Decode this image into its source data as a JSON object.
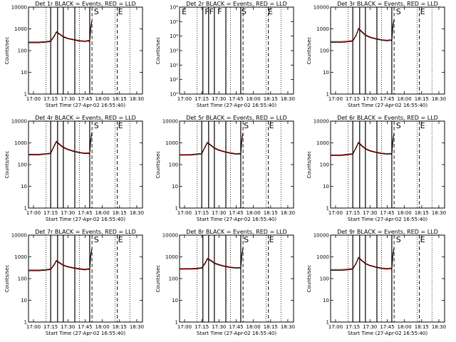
{
  "figure": {
    "background": "#ffffff",
    "axis_color": "#000000"
  },
  "colors": {
    "events": "#000000",
    "lld": "#cc0000"
  },
  "x_tick_labels": [
    "17:00",
    "17:15",
    "17:30",
    "17:45",
    "18:00",
    "18:15",
    "18:30"
  ],
  "xlabel": "Start Time (27-Apr-02 16:55:40)",
  "ylabel": "Counts/sec",
  "chart_data": [
    {
      "type": "line",
      "title": "Det 1r BLACK = Events, RED = LLD",
      "xlim": [
        "16:55:40",
        "18:35:00"
      ],
      "ylim": [
        1,
        10000
      ],
      "yscale": "log",
      "ytick_labels": [
        "1",
        "10",
        "100",
        "1000",
        "10000"
      ],
      "solid_lines": [
        "17:15",
        "17:21",
        "17:26",
        "17:36",
        "17:49"
      ],
      "dotted_lines": [
        "17:11",
        "17:40",
        "18:11",
        "18:24"
      ],
      "dashed_lines": [
        "17:51",
        "18:13"
      ],
      "flags": [
        {
          "text": "S",
          "x": "17:52"
        },
        {
          "text": "E",
          "x": "18:13"
        }
      ],
      "series": [
        {
          "name": "Events",
          "x": [
            "16:55:40",
            "17:05",
            "17:10",
            "17:15",
            "17:18",
            "17:20",
            "17:23",
            "17:26",
            "17:30",
            "17:35",
            "17:40",
            "17:45",
            "17:48",
            "17:49",
            "17:50",
            "17:51"
          ],
          "values": [
            230,
            230,
            240,
            260,
            450,
            700,
            550,
            420,
            350,
            310,
            270,
            260,
            280,
            250,
            1200,
            2400
          ]
        },
        {
          "name": "LLD",
          "x": [
            "16:55:40",
            "17:05",
            "17:10",
            "17:15",
            "17:18",
            "17:20",
            "17:23",
            "17:26",
            "17:30",
            "17:35",
            "17:40",
            "17:45",
            "17:48",
            "17:49",
            "17:50",
            "17:51"
          ],
          "values": [
            250,
            250,
            260,
            280,
            480,
            750,
            580,
            450,
            370,
            330,
            290,
            275,
            300,
            270,
            1300,
            2600
          ]
        }
      ]
    },
    {
      "type": "line",
      "title": "Det 2r BLACK = Events, RED = LLD",
      "xlim": [
        "16:55:40",
        "18:35:00"
      ],
      "ylim": [
        1,
        1000000
      ],
      "yscale": "log",
      "ytick_labels": [
        "10⁰",
        "10¹",
        "10²",
        "10³",
        "10⁴",
        "10⁵",
        "10⁶"
      ],
      "solid_lines": [
        "17:16",
        "17:21",
        "17:26",
        "17:36",
        "17:49"
      ],
      "dotted_lines": [
        "17:11",
        "17:40",
        "18:11",
        "18:24"
      ],
      "dashed_lines": [
        "17:51",
        "18:13"
      ],
      "flags": [
        {
          "text": "E",
          "x": "16:57"
        },
        {
          "text": "FF",
          "x": "17:17"
        },
        {
          "text": "F",
          "x": "17:28"
        },
        {
          "text": "S",
          "x": "17:49"
        },
        {
          "text": "E",
          "x": "18:12"
        }
      ],
      "series": []
    },
    {
      "type": "line",
      "title": "Det 3r BLACK = Events, RED = LLD",
      "xlim": [
        "16:55:40",
        "18:35:00"
      ],
      "ylim": [
        1,
        10000
      ],
      "yscale": "log",
      "ytick_labels": [
        "1",
        "10",
        "100",
        "1000",
        "10000"
      ],
      "solid_lines": [
        "17:15",
        "17:21",
        "17:26",
        "17:36",
        "17:49"
      ],
      "dotted_lines": [
        "17:11",
        "17:40",
        "18:11",
        "18:24"
      ],
      "dashed_lines": [
        "17:51",
        "18:13"
      ],
      "flags": [
        {
          "text": "S",
          "x": "17:52"
        },
        {
          "text": "E",
          "x": "18:13"
        }
      ],
      "series": [
        {
          "name": "Events",
          "x": [
            "16:55:40",
            "17:05",
            "17:10",
            "17:15",
            "17:18",
            "17:20",
            "17:23",
            "17:26",
            "17:30",
            "17:35",
            "17:40",
            "17:45",
            "17:48",
            "17:49",
            "17:50",
            "17:51"
          ],
          "values": [
            240,
            240,
            250,
            270,
            500,
            1000,
            700,
            500,
            400,
            340,
            300,
            280,
            300,
            270,
            1400,
            2600
          ]
        },
        {
          "name": "LLD",
          "x": [
            "16:55:40",
            "17:05",
            "17:10",
            "17:15",
            "17:18",
            "17:20",
            "17:23",
            "17:26",
            "17:30",
            "17:35",
            "17:40",
            "17:45",
            "17:48",
            "17:49",
            "17:50",
            "17:51"
          ],
          "values": [
            260,
            260,
            270,
            290,
            540,
            1080,
            760,
            540,
            430,
            360,
            320,
            300,
            320,
            290,
            1500,
            2800
          ]
        }
      ]
    },
    {
      "type": "line",
      "title": "Det 4r BLACK = Events, RED = LLD",
      "xlim": [
        "16:55:40",
        "18:35:00"
      ],
      "ylim": [
        1,
        10000
      ],
      "yscale": "log",
      "ytick_labels": [
        "1",
        "10",
        "100",
        "1000",
        "10000"
      ],
      "solid_lines": [
        "17:15",
        "17:21",
        "17:26",
        "17:36",
        "17:49"
      ],
      "dotted_lines": [
        "17:11",
        "17:40",
        "18:11",
        "18:24"
      ],
      "dashed_lines": [
        "17:51",
        "18:13"
      ],
      "flags": [
        {
          "text": "S",
          "x": "17:52"
        },
        {
          "text": "E",
          "x": "18:13"
        }
      ],
      "series": [
        {
          "name": "Events",
          "x": [
            "16:55:40",
            "17:05",
            "17:10",
            "17:15",
            "17:18",
            "17:20",
            "17:23",
            "17:26",
            "17:30",
            "17:35",
            "17:40",
            "17:45",
            "17:48",
            "17:49",
            "17:50",
            "17:51"
          ],
          "values": [
            280,
            280,
            300,
            320,
            700,
            1100,
            800,
            600,
            480,
            400,
            350,
            320,
            330,
            300,
            1500,
            3000
          ]
        },
        {
          "name": "LLD",
          "x": [
            "16:55:40",
            "17:05",
            "17:10",
            "17:15",
            "17:18",
            "17:20",
            "17:23",
            "17:26",
            "17:30",
            "17:35",
            "17:40",
            "17:45",
            "17:48",
            "17:49",
            "17:50",
            "17:51"
          ],
          "values": [
            300,
            300,
            320,
            340,
            760,
            1200,
            860,
            650,
            520,
            430,
            370,
            340,
            350,
            320,
            1600,
            3200
          ]
        }
      ]
    },
    {
      "type": "line",
      "title": "Det 5r BLACK = Events, RED = LLD",
      "xlim": [
        "16:55:40",
        "18:35:00"
      ],
      "ylim": [
        1,
        10000
      ],
      "yscale": "log",
      "ytick_labels": [
        "1",
        "10",
        "100",
        "1000",
        "10000"
      ],
      "solid_lines": [
        "17:15",
        "17:21",
        "17:26",
        "17:36",
        "17:49"
      ],
      "dotted_lines": [
        "17:11",
        "17:40",
        "18:11",
        "18:24"
      ],
      "dashed_lines": [
        "17:51",
        "18:13"
      ],
      "flags": [
        {
          "text": "S",
          "x": "17:51"
        },
        {
          "text": "E",
          "x": "18:13"
        }
      ],
      "series": [
        {
          "name": "Events",
          "x": [
            "16:55:40",
            "17:05",
            "17:10",
            "17:15",
            "17:18",
            "17:20",
            "17:23",
            "17:26",
            "17:30",
            "17:35",
            "17:40",
            "17:45",
            "17:48",
            "17:49",
            "17:50",
            "17:51"
          ],
          "values": [
            270,
            270,
            290,
            310,
            650,
            1000,
            750,
            560,
            450,
            380,
            330,
            300,
            310,
            280,
            1400,
            2800
          ]
        },
        {
          "name": "LLD",
          "x": [
            "16:55:40",
            "17:05",
            "17:10",
            "17:15",
            "17:18",
            "17:20",
            "17:23",
            "17:26",
            "17:30",
            "17:35",
            "17:40",
            "17:45",
            "17:48",
            "17:49",
            "17:50",
            "17:51"
          ],
          "values": [
            290,
            290,
            310,
            330,
            700,
            1080,
            800,
            600,
            480,
            400,
            350,
            320,
            330,
            300,
            1500,
            3000
          ]
        }
      ]
    },
    {
      "type": "line",
      "title": "Det 6r BLACK = Events, RED = LLD",
      "xlim": [
        "16:55:40",
        "18:35:00"
      ],
      "ylim": [
        1,
        10000
      ],
      "yscale": "log",
      "ytick_labels": [
        "1",
        "10",
        "100",
        "1000",
        "10000"
      ],
      "solid_lines": [
        "17:15",
        "17:21",
        "17:26",
        "17:36",
        "17:49"
      ],
      "dotted_lines": [
        "17:11",
        "17:40",
        "18:11",
        "18:24"
      ],
      "dashed_lines": [
        "17:51",
        "18:13"
      ],
      "flags": [
        {
          "text": "S",
          "x": "17:52"
        },
        {
          "text": "E",
          "x": "18:13"
        }
      ],
      "series": [
        {
          "name": "Events",
          "x": [
            "16:55:40",
            "17:05",
            "17:10",
            "17:15",
            "17:18",
            "17:20",
            "17:23",
            "17:26",
            "17:30",
            "17:35",
            "17:40",
            "17:45",
            "17:48",
            "17:49",
            "17:50",
            "17:51"
          ],
          "values": [
            260,
            260,
            280,
            300,
            600,
            1000,
            700,
            520,
            420,
            360,
            320,
            300,
            310,
            280,
            1300,
            2700
          ]
        },
        {
          "name": "LLD",
          "x": [
            "16:55:40",
            "17:05",
            "17:10",
            "17:15",
            "17:18",
            "17:20",
            "17:23",
            "17:26",
            "17:30",
            "17:35",
            "17:40",
            "17:45",
            "17:48",
            "17:49",
            "17:50",
            "17:51"
          ],
          "values": [
            280,
            280,
            300,
            320,
            650,
            1080,
            760,
            560,
            450,
            380,
            340,
            320,
            330,
            300,
            1400,
            2900
          ]
        }
      ]
    },
    {
      "type": "line",
      "title": "Det 7r BLACK = Events, RED = LLD",
      "xlim": [
        "16:55:40",
        "18:35:00"
      ],
      "ylim": [
        1,
        10000
      ],
      "yscale": "log",
      "ytick_labels": [
        "1",
        "10",
        "100",
        "1000",
        "10000"
      ],
      "solid_lines": [
        "17:15",
        "17:21",
        "17:26",
        "17:36",
        "17:49"
      ],
      "dotted_lines": [
        "17:11",
        "17:40",
        "18:11",
        "18:24"
      ],
      "dashed_lines": [
        "17:51",
        "18:13"
      ],
      "flags": [
        {
          "text": "S",
          "x": "17:52"
        },
        {
          "text": "E",
          "x": "18:13"
        }
      ],
      "series": [
        {
          "name": "Events",
          "x": [
            "16:55:40",
            "17:05",
            "17:10",
            "17:15",
            "17:18",
            "17:20",
            "17:23",
            "17:26",
            "17:30",
            "17:35",
            "17:40",
            "17:45",
            "17:48",
            "17:49",
            "17:50",
            "17:51"
          ],
          "values": [
            230,
            230,
            240,
            260,
            420,
            650,
            500,
            400,
            340,
            300,
            270,
            250,
            270,
            250,
            1200,
            2400
          ]
        },
        {
          "name": "LLD",
          "x": [
            "16:55:40",
            "17:05",
            "17:10",
            "17:15",
            "17:18",
            "17:20",
            "17:23",
            "17:26",
            "17:30",
            "17:35",
            "17:40",
            "17:45",
            "17:48",
            "17:49",
            "17:50",
            "17:51"
          ],
          "values": [
            250,
            250,
            260,
            280,
            450,
            700,
            540,
            430,
            360,
            320,
            290,
            270,
            290,
            270,
            1300,
            2600
          ]
        }
      ]
    },
    {
      "type": "line",
      "title": "Det 8r BLACK = Events, RED = LLD",
      "xlim": [
        "16:55:40",
        "18:35:00"
      ],
      "ylim": [
        1,
        10000
      ],
      "yscale": "log",
      "ytick_labels": [
        "1",
        "10",
        "100",
        "1000",
        "10000"
      ],
      "solid_lines": [
        "17:16",
        "17:21",
        "17:26",
        "17:36",
        "17:49"
      ],
      "dotted_lines": [
        "17:11",
        "17:40",
        "18:11",
        "18:24"
      ],
      "dashed_lines": [
        "17:51",
        "18:13"
      ],
      "flags": [
        {
          "text": "S",
          "x": "17:51"
        },
        {
          "text": "E",
          "x": "18:13"
        }
      ],
      "series": [
        {
          "name": "Events",
          "x": [
            "16:55:40",
            "17:05",
            "17:10",
            "17:15",
            "17:18",
            "17:20",
            "17:23",
            "17:26",
            "17:30",
            "17:35",
            "17:40",
            "17:45",
            "17:48",
            "17:49",
            "17:50",
            "17:51"
          ],
          "values": [
            270,
            270,
            280,
            300,
            500,
            800,
            650,
            500,
            420,
            360,
            320,
            300,
            310,
            290,
            1300,
            2600
          ]
        },
        {
          "name": "LLD",
          "x": [
            "16:55:40",
            "17:05",
            "17:10",
            "17:15",
            "17:18",
            "17:20",
            "17:23",
            "17:26",
            "17:30",
            "17:35",
            "17:40",
            "17:45",
            "17:48",
            "17:49",
            "17:50",
            "17:51"
          ],
          "values": [
            290,
            290,
            300,
            320,
            540,
            860,
            700,
            540,
            450,
            380,
            340,
            320,
            330,
            310,
            1400,
            2800
          ]
        }
      ]
    },
    {
      "type": "line",
      "title": "Det 9r BLACK = Events, RED = LLD",
      "xlim": [
        "16:55:40",
        "18:35:00"
      ],
      "ylim": [
        1,
        10000
      ],
      "yscale": "log",
      "ytick_labels": [
        "1",
        "10",
        "100",
        "1000",
        "10000"
      ],
      "solid_lines": [
        "17:15",
        "17:21",
        "17:26",
        "17:36",
        "17:49"
      ],
      "dotted_lines": [
        "17:11",
        "17:40",
        "18:11",
        "18:24"
      ],
      "dashed_lines": [
        "17:51",
        "18:13"
      ],
      "flags": [
        {
          "text": "S",
          "x": "17:52"
        },
        {
          "text": "E",
          "x": "18:13"
        }
      ],
      "series": [
        {
          "name": "Events",
          "x": [
            "16:55:40",
            "17:05",
            "17:10",
            "17:15",
            "17:18",
            "17:20",
            "17:23",
            "17:26",
            "17:30",
            "17:35",
            "17:40",
            "17:45",
            "17:48",
            "17:49",
            "17:50",
            "17:51"
          ],
          "values": [
            240,
            240,
            250,
            270,
            500,
            900,
            650,
            480,
            390,
            330,
            290,
            270,
            290,
            260,
            1300,
            2500
          ]
        },
        {
          "name": "LLD",
          "x": [
            "16:55:40",
            "17:05",
            "17:10",
            "17:15",
            "17:18",
            "17:20",
            "17:23",
            "17:26",
            "17:30",
            "17:35",
            "17:40",
            "17:45",
            "17:48",
            "17:49",
            "17:50",
            "17:51"
          ],
          "values": [
            260,
            260,
            270,
            290,
            540,
            960,
            700,
            510,
            410,
            350,
            310,
            290,
            310,
            280,
            1400,
            2700
          ]
        }
      ]
    }
  ]
}
